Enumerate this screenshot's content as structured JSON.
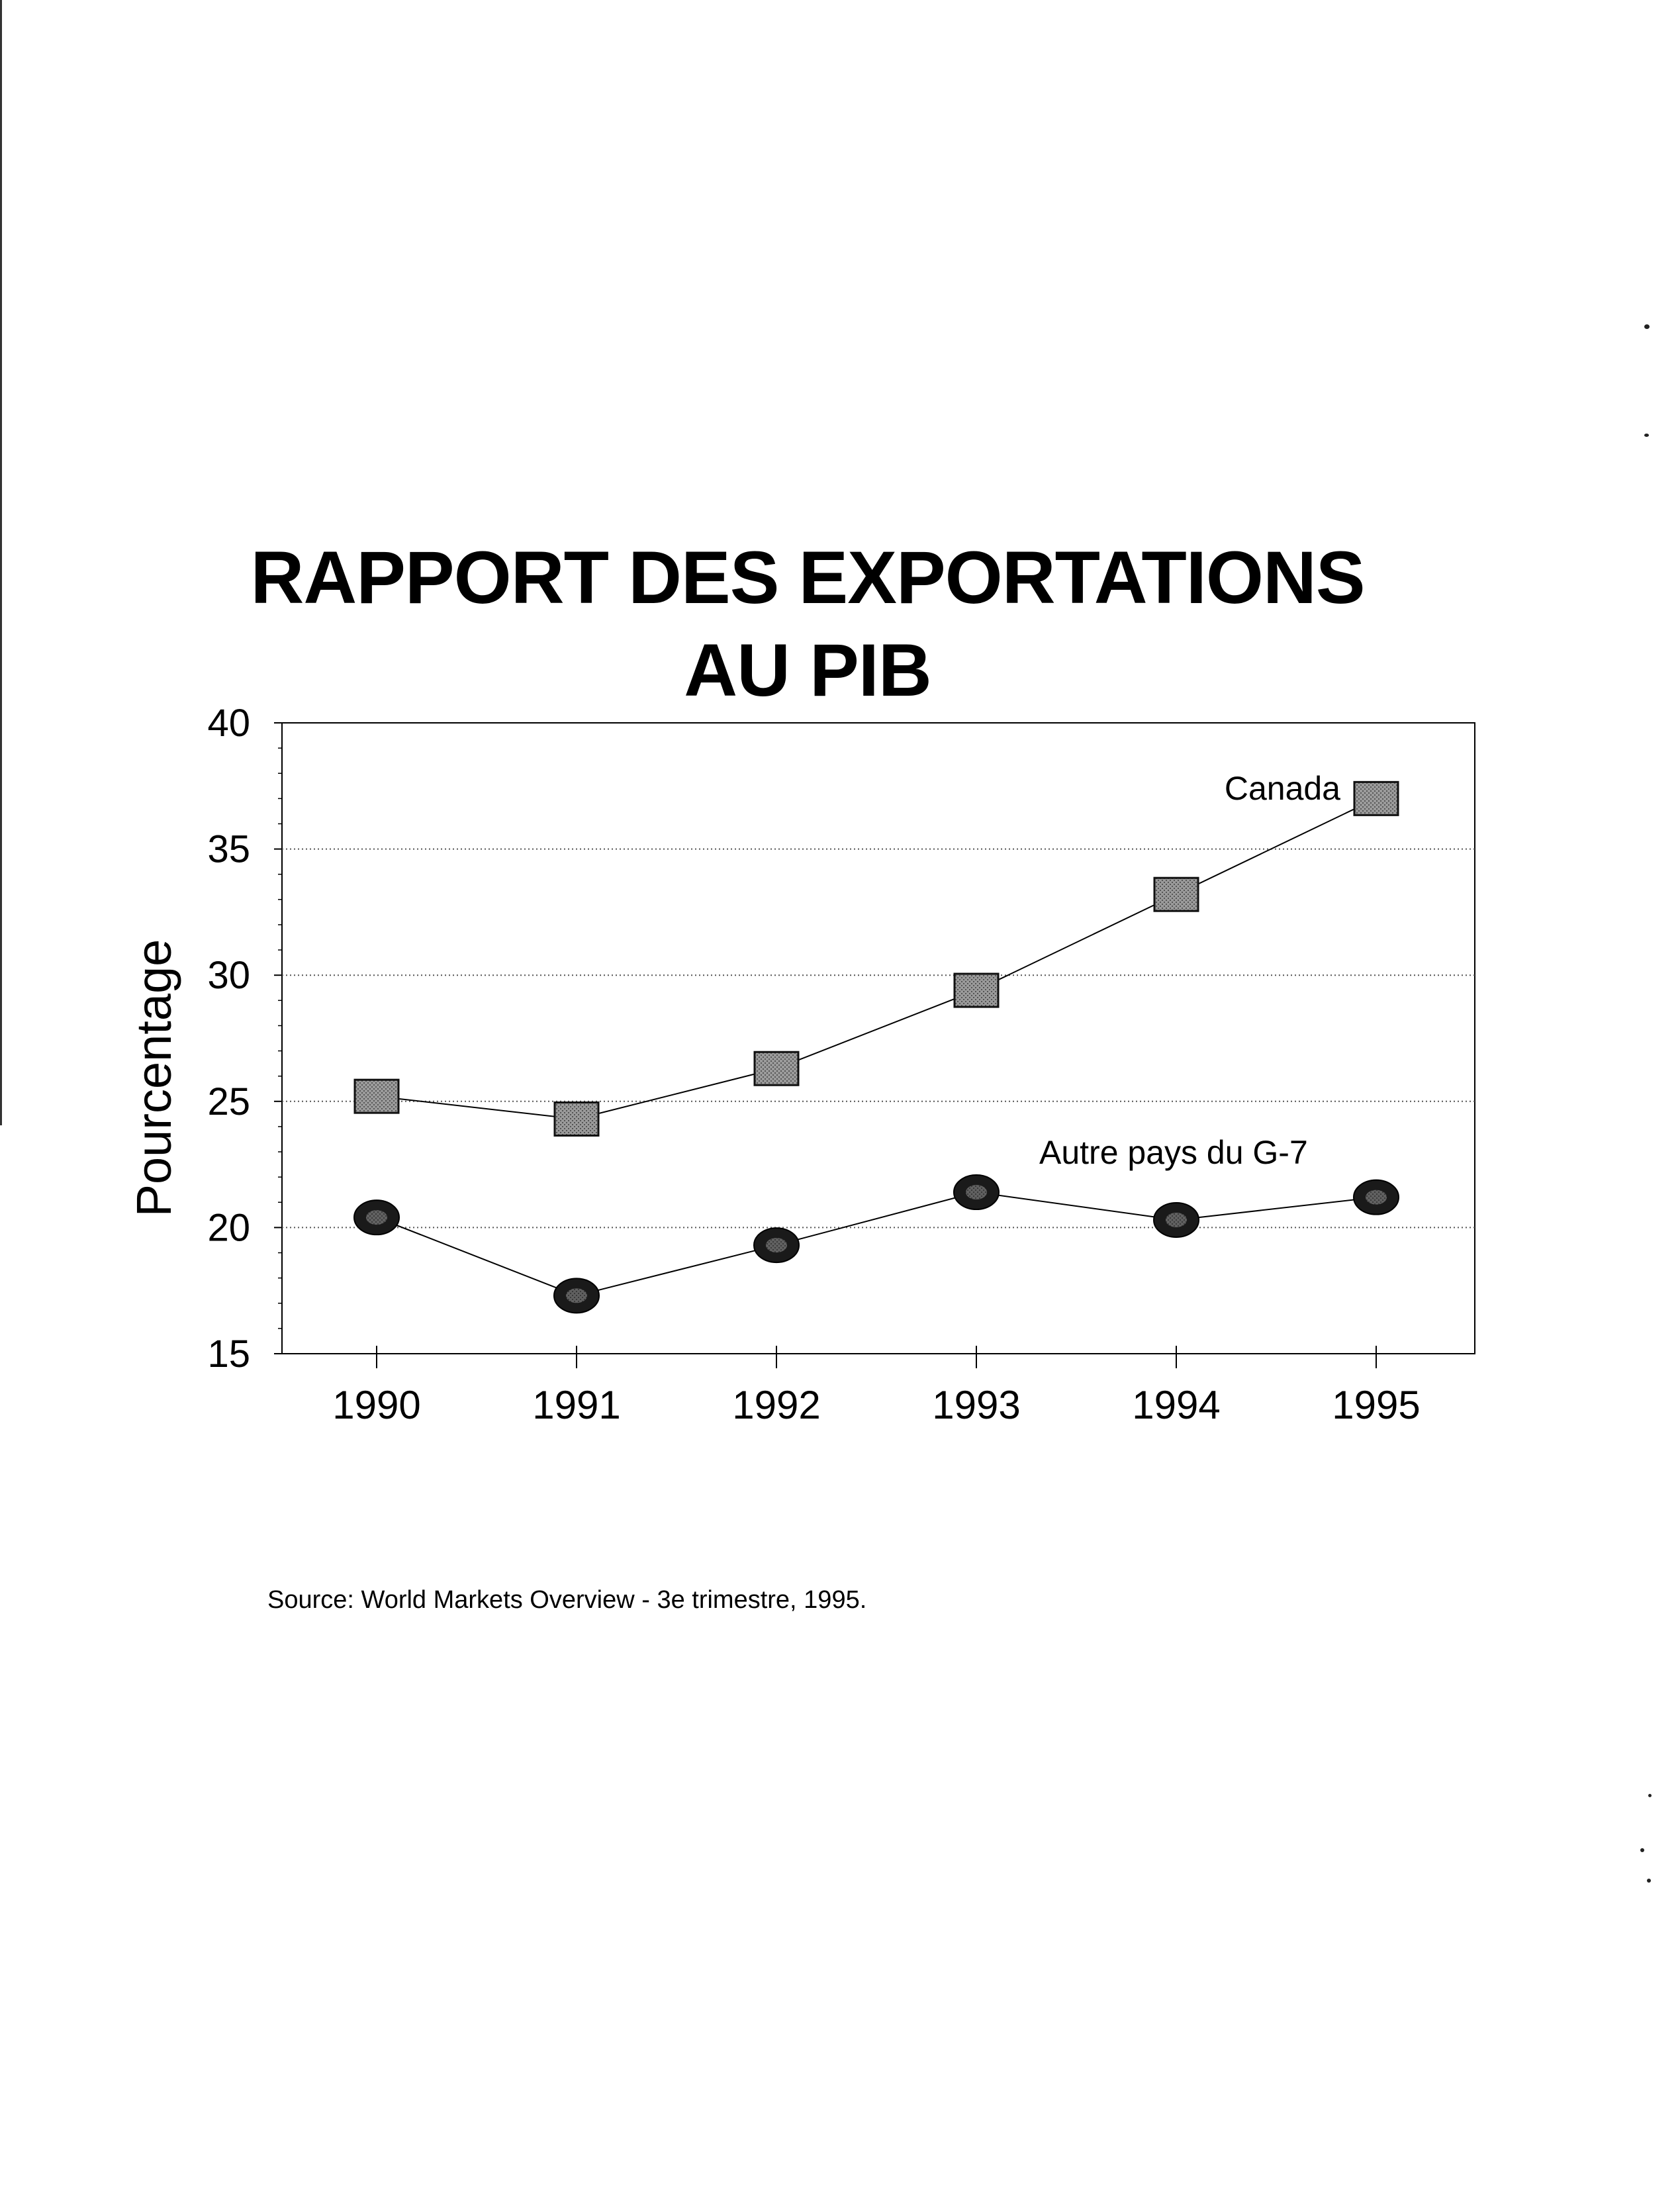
{
  "document": {
    "title_line1": "RAPPORT DES EXPORTATIONS",
    "title_line2": "AU PIB",
    "source": "Source:  World Markets Overview - 3e trimestre, 1995."
  },
  "chart_data": {
    "type": "line",
    "title": "RAPPORT DES EXPORTATIONS AU PIB",
    "xlabel": "",
    "ylabel": "Pourcentage",
    "categories": [
      "1990",
      "1991",
      "1992",
      "1993",
      "1994",
      "1995"
    ],
    "ylim": [
      15,
      40
    ],
    "yticks": [
      15,
      20,
      25,
      30,
      35,
      40
    ],
    "grid": "horizontal dotted",
    "series": [
      {
        "name": "Canada",
        "marker": "square",
        "values": [
          25.2,
          24.3,
          26.3,
          29.4,
          33.2,
          37.0
        ]
      },
      {
        "name": "Autre pays du G-7",
        "marker": "circle",
        "values": [
          20.4,
          17.3,
          19.3,
          21.4,
          20.3,
          21.2
        ]
      }
    ],
    "marker_color": "#8a8a8a",
    "line_color": "#000000"
  }
}
